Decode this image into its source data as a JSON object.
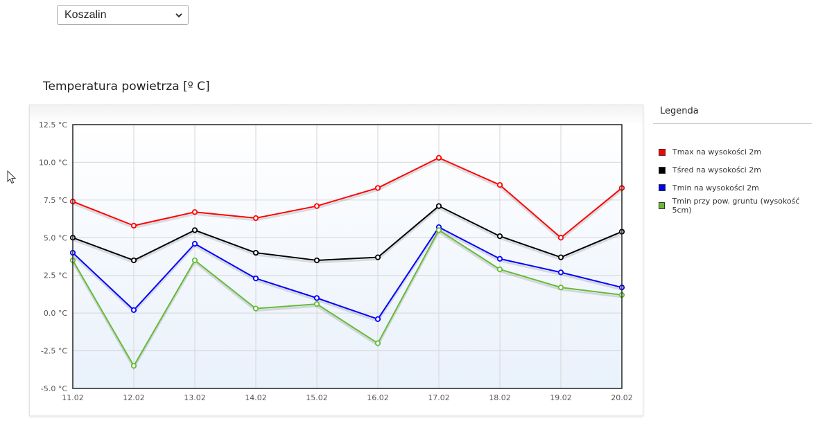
{
  "selector": {
    "selected": "Koszalin"
  },
  "legend": {
    "title": "Legenda"
  },
  "colors": {
    "tmax": "#ff0000",
    "tsr": "#000000",
    "tmin": "#0000ff",
    "tground": "#66bb33"
  },
  "chart_data": {
    "type": "line",
    "title": "Temperatura powietrza [º C]",
    "x": [
      "11.02",
      "12.02",
      "13.02",
      "14.02",
      "15.02",
      "16.02",
      "17.02",
      "18.02",
      "19.02",
      "20.02"
    ],
    "yticks": [
      "12.5 °C",
      "10.0 °C",
      "7.5 °C",
      "5.0 °C",
      "2.5 °C",
      "0.0 °C",
      "-2.5 °C",
      "-5.0 °C"
    ],
    "ylim": [
      -5,
      12.5
    ],
    "grid": true,
    "legend_position": "right",
    "series": [
      {
        "name": "Tmax na wysokości 2m",
        "color": "#ff0000",
        "values": [
          7.4,
          5.8,
          6.7,
          6.3,
          7.1,
          8.3,
          10.3,
          8.5,
          5.0,
          8.3
        ]
      },
      {
        "name": "Tśred na wysokości 2m",
        "color": "#000000",
        "values": [
          5.0,
          3.5,
          5.5,
          4.0,
          3.5,
          3.7,
          7.1,
          5.1,
          3.7,
          5.4
        ]
      },
      {
        "name": "Tmin na wysokości 2m",
        "color": "#0000ff",
        "values": [
          4.0,
          0.2,
          4.6,
          2.3,
          1.0,
          -0.4,
          5.7,
          3.6,
          2.7,
          1.7
        ]
      },
      {
        "name": "Tmin przy pow. gruntu (wysokość 5cm)",
        "color": "#66bb33",
        "values": [
          3.5,
          -3.5,
          3.5,
          0.3,
          0.6,
          -2.0,
          5.5,
          2.9,
          1.7,
          1.2
        ]
      }
    ]
  }
}
